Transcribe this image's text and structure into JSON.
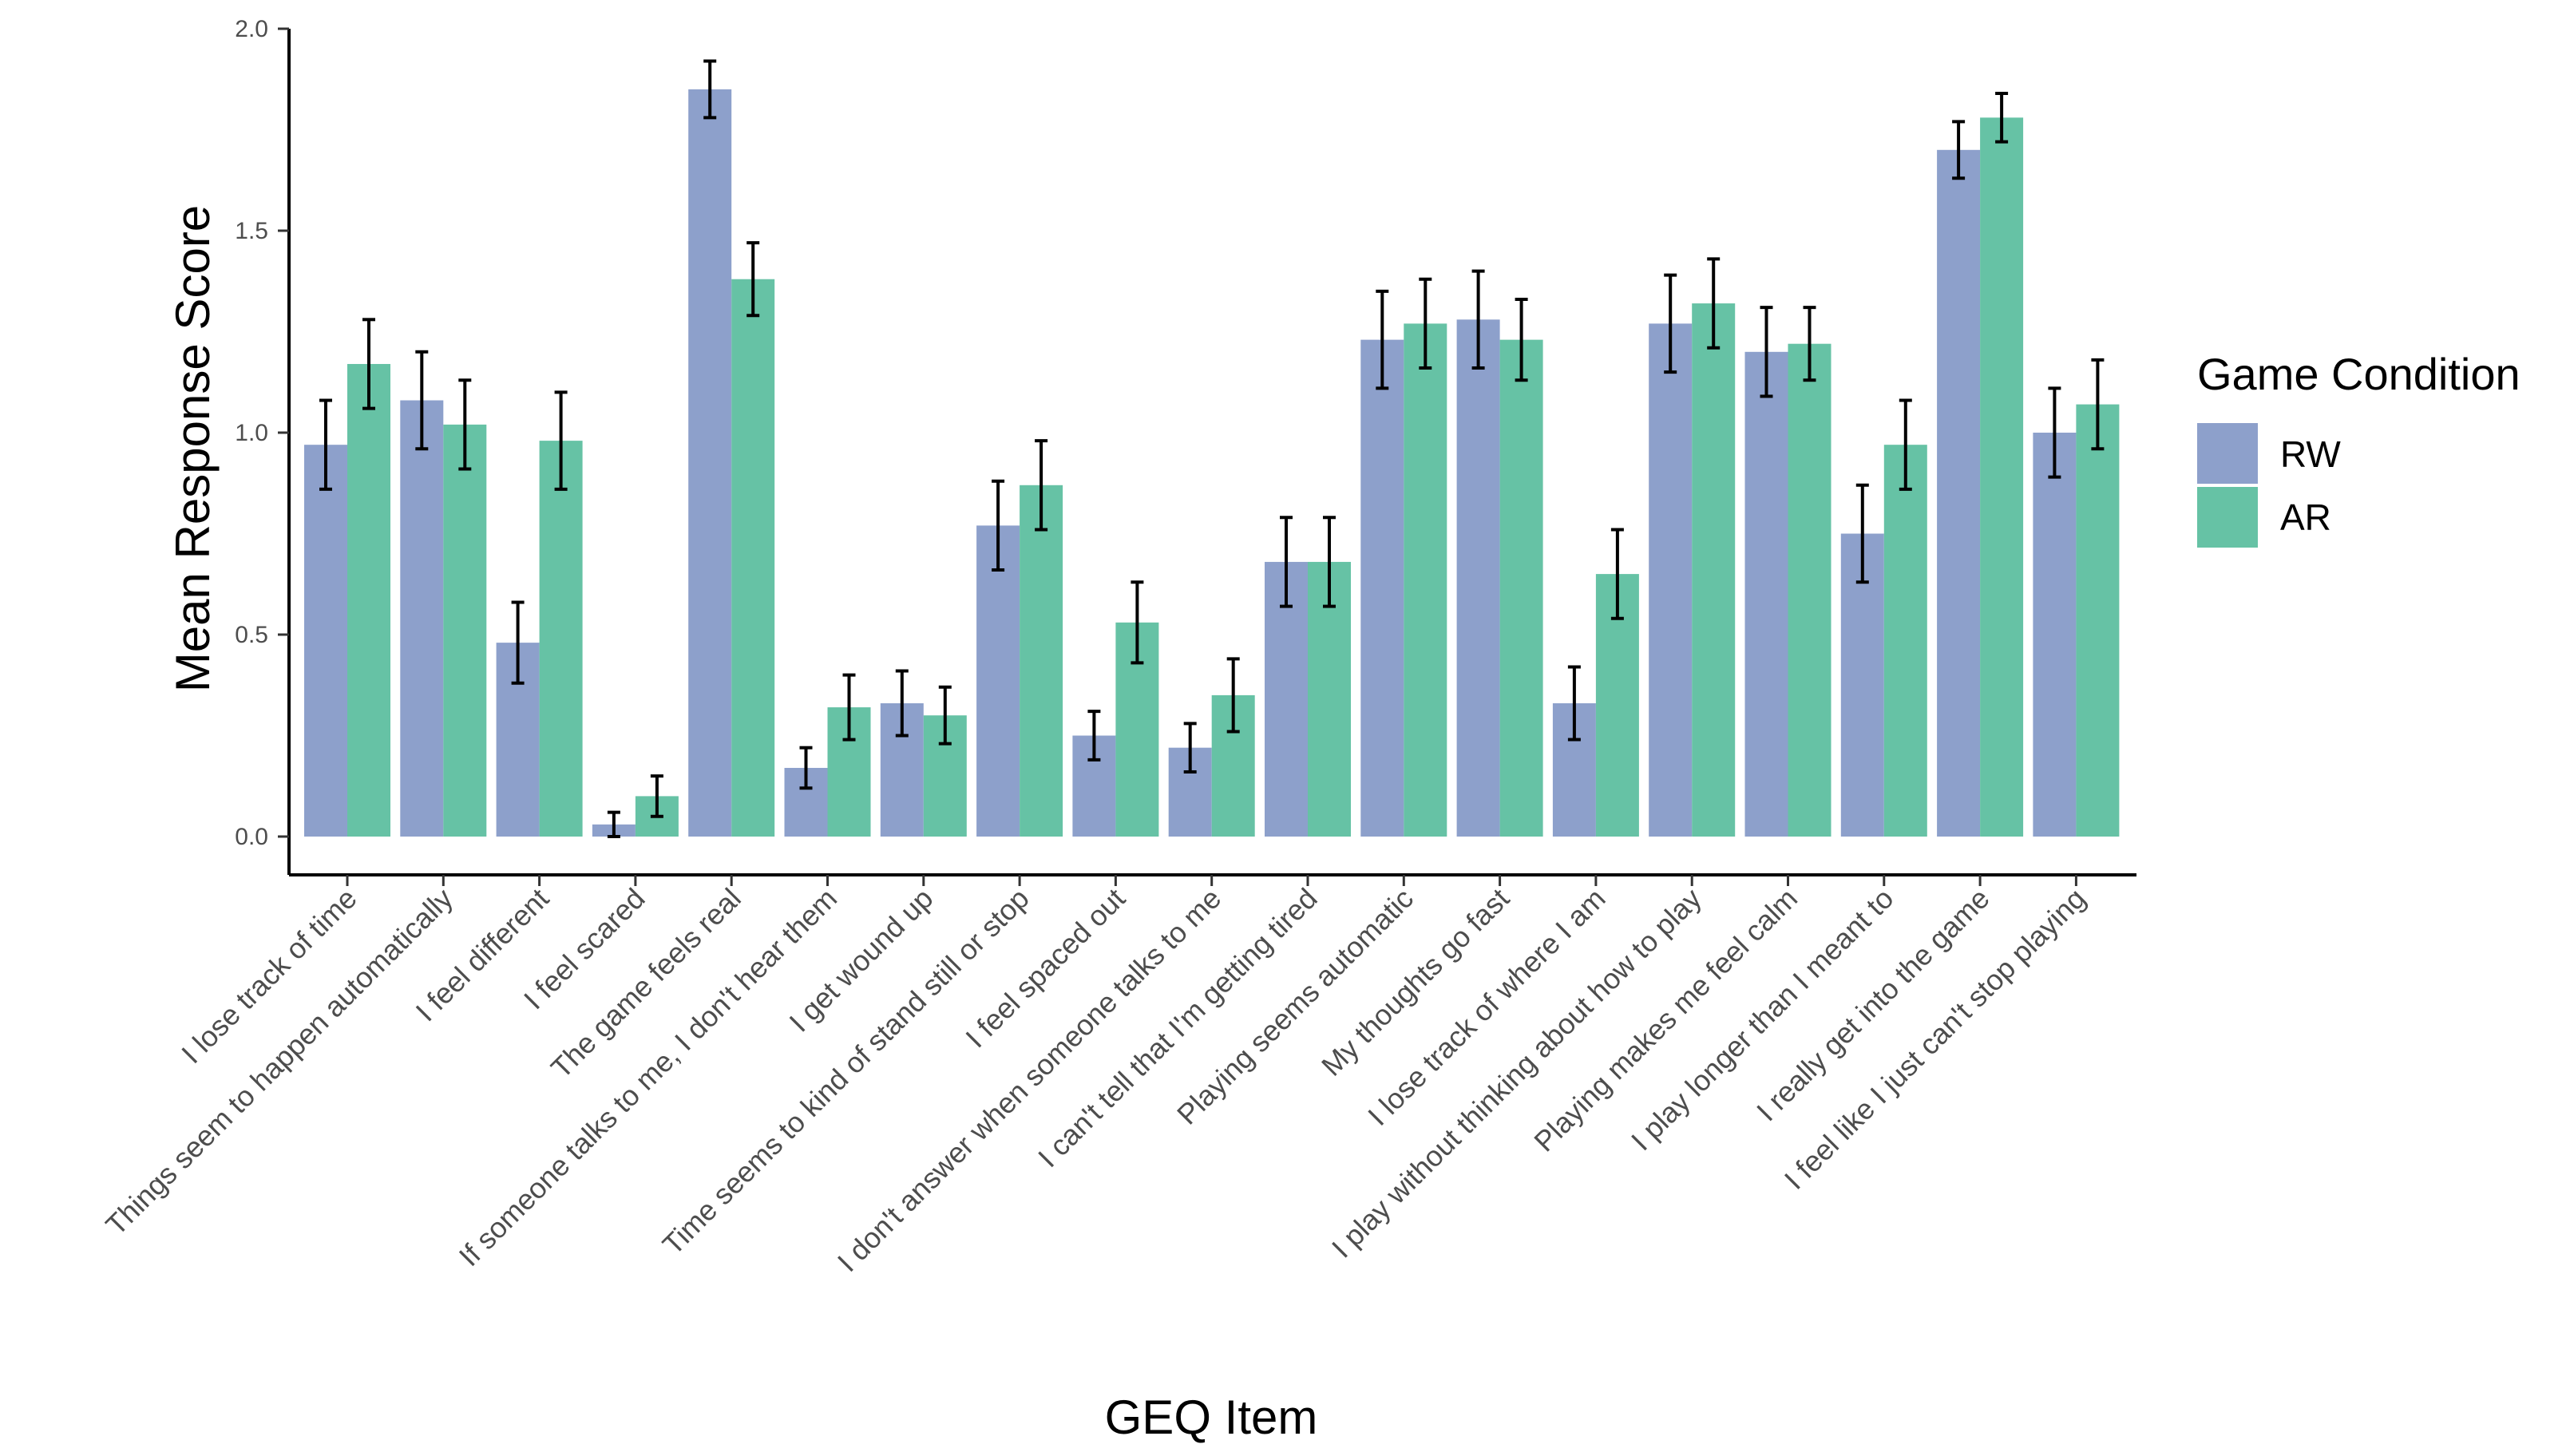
{
  "chart_data": {
    "type": "bar",
    "xlabel": "GEQ Item",
    "ylabel": "Mean Response Score",
    "ylim": [
      0,
      2
    ],
    "yticks": [
      0.0,
      0.5,
      1.0,
      1.5,
      2.0
    ],
    "ytick_labels": [
      "0.0",
      "0.5",
      "1.0",
      "1.5",
      "2.0"
    ],
    "grid": false,
    "legend_position": "right",
    "legend_title": "Game Condition",
    "categories": [
      "I lose track of time",
      "Things seem to happen automatically",
      "I feel different",
      "I feel scared",
      "The game feels real",
      "If someone talks to me, I don't hear them",
      "I get wound up",
      "Time seems to kind of stand still or stop",
      "I feel spaced out",
      "I don't answer when someone talks to me",
      "I can't tell that I'm getting tired",
      "Playing seems automatic",
      "My thoughts go fast",
      "I lose track of where I am",
      "I play without thinking about how to play",
      "Playing makes me feel calm",
      "I play longer than I meant to",
      "I really get into the game",
      "I feel like I just can't stop playing"
    ],
    "series": [
      {
        "name": "RW",
        "color": "#8da0cb",
        "values": [
          0.97,
          1.08,
          0.48,
          0.03,
          1.85,
          0.17,
          0.33,
          0.77,
          0.25,
          0.22,
          0.68,
          1.23,
          1.28,
          0.33,
          1.27,
          1.2,
          0.75,
          1.7,
          1.0
        ],
        "errors": [
          0.11,
          0.12,
          0.1,
          0.03,
          0.07,
          0.05,
          0.08,
          0.11,
          0.06,
          0.06,
          0.11,
          0.12,
          0.12,
          0.09,
          0.12,
          0.11,
          0.12,
          0.07,
          0.11
        ]
      },
      {
        "name": "AR",
        "color": "#66c2a5",
        "values": [
          1.17,
          1.02,
          0.98,
          0.1,
          1.38,
          0.32,
          0.3,
          0.87,
          0.53,
          0.35,
          0.68,
          1.27,
          1.23,
          0.65,
          1.32,
          1.22,
          0.97,
          1.78,
          1.07
        ],
        "errors": [
          0.11,
          0.11,
          0.12,
          0.05,
          0.09,
          0.08,
          0.07,
          0.11,
          0.1,
          0.09,
          0.11,
          0.11,
          0.1,
          0.11,
          0.11,
          0.09,
          0.11,
          0.06,
          0.11
        ]
      }
    ]
  }
}
